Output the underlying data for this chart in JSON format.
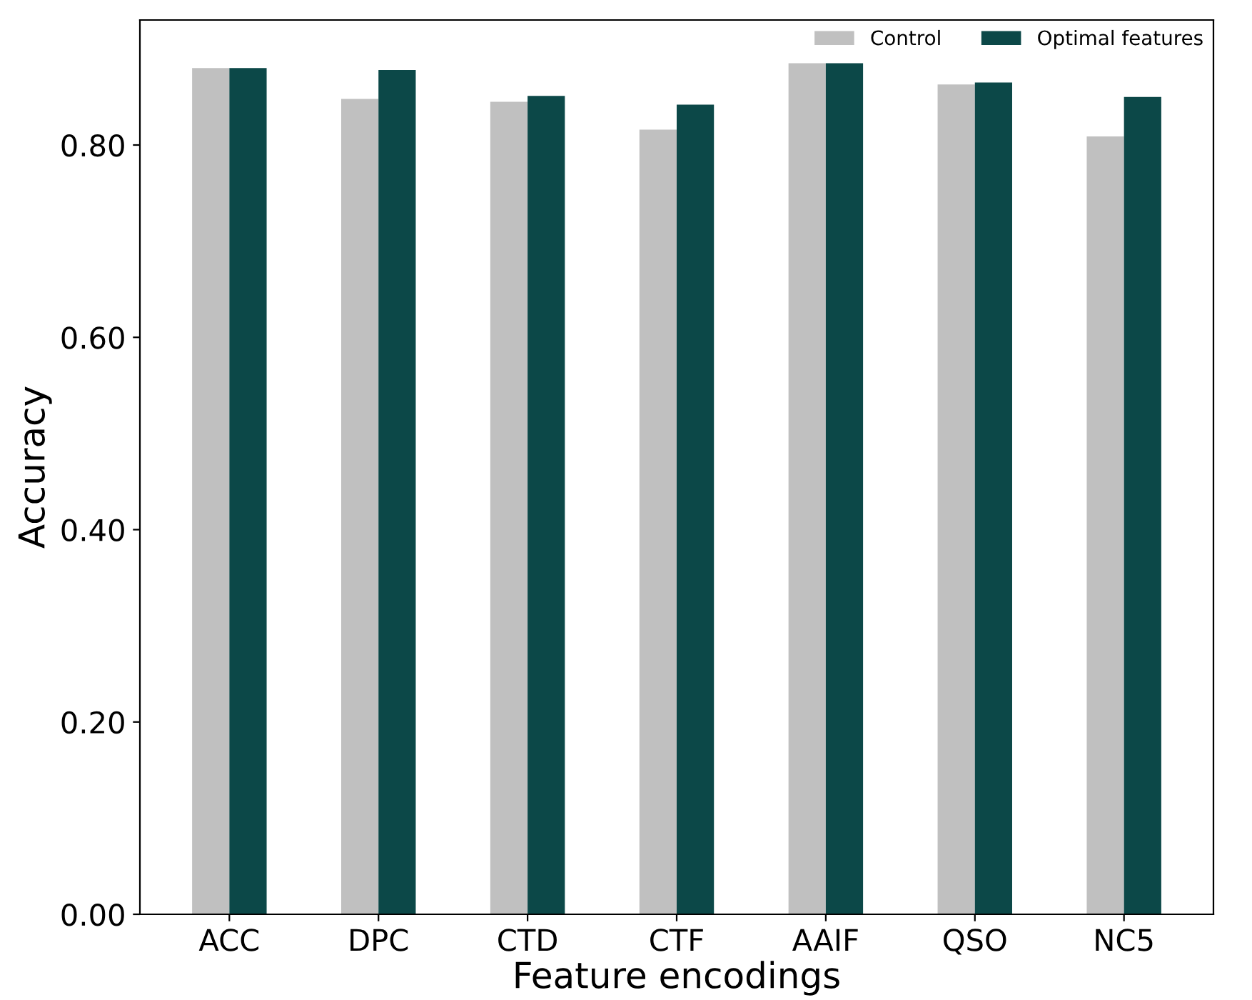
{
  "chart_data": {
    "type": "bar",
    "xlabel": "Feature encodings",
    "ylabel": "Accuracy",
    "categories": [
      "ACC",
      "DPC",
      "CTD",
      "CTF",
      "AAIF",
      "QSO",
      "NC5"
    ],
    "series": [
      {
        "name": "Control",
        "color": "#c0c0c0",
        "values": [
          0.88,
          0.848,
          0.845,
          0.816,
          0.885,
          0.863,
          0.809
        ]
      },
      {
        "name": "Optimal features",
        "color": "#0c4848",
        "values": [
          0.88,
          0.878,
          0.851,
          0.842,
          0.885,
          0.865,
          0.85
        ]
      }
    ],
    "ylim": [
      0,
      0.93
    ],
    "yticks": [
      {
        "value": 0,
        "label": "0.00"
      },
      {
        "value": 0.2,
        "label": "0.20"
      },
      {
        "value": 0.4,
        "label": "0.40"
      },
      {
        "value": 0.6,
        "label": "0.60"
      },
      {
        "value": 0.8,
        "label": "0.80"
      }
    ],
    "legend": "top right",
    "grid": false
  }
}
